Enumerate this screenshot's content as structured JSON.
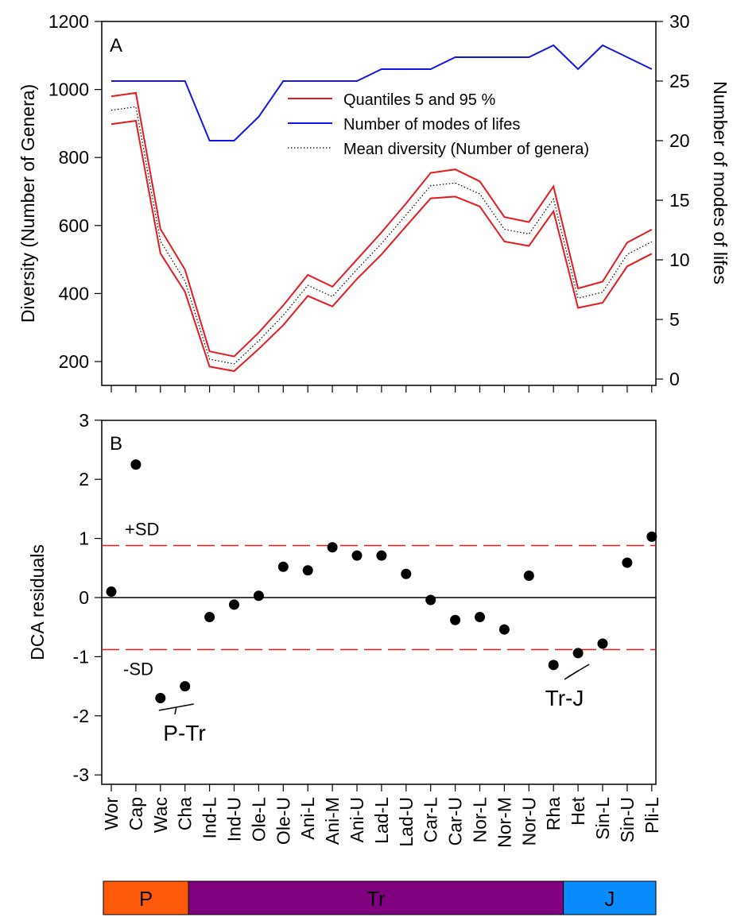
{
  "chart_data": [
    {
      "panel": "A",
      "type": "line",
      "x": [
        "Wor",
        "Cap",
        "Wac",
        "Cha",
        "Ind-L",
        "Ind-U",
        "Ole-L",
        "Ole-U",
        "Ani-L",
        "Ani-M",
        "Ani-U",
        "Lad-L",
        "Lad-U",
        "Car-L",
        "Car-U",
        "Nor-L",
        "Nor-M",
        "Nor-U",
        "Rha",
        "Het",
        "Sin-L",
        "Sin-U",
        "Pli-L"
      ],
      "ylabel": "Diversity (Number of Genera)",
      "y2label": "Number of modes of lifes",
      "ylim": [
        150,
        1200
      ],
      "y2lim": [
        0,
        30
      ],
      "yticks": [
        200,
        400,
        600,
        800,
        1000,
        1200
      ],
      "y2ticks": [
        0,
        5,
        10,
        15,
        20,
        25,
        30
      ],
      "legend_position": "upper-right",
      "series": [
        {
          "name": "Quantiles 5 and 95 %",
          "axis": "left",
          "color": "#e8191e",
          "style": "solid",
          "values": [
            980,
            990,
            590,
            470,
            230,
            215,
            285,
            365,
            455,
            420,
            500,
            580,
            665,
            755,
            765,
            730,
            625,
            610,
            715,
            415,
            435,
            550,
            588
          ]
        },
        {
          "name": "",
          "axis": "left",
          "color": "#e8191e",
          "style": "solid",
          "values": [
            898,
            908,
            518,
            405,
            185,
            172,
            237,
            307,
            393,
            362,
            443,
            515,
            598,
            680,
            685,
            656,
            553,
            540,
            642,
            358,
            373,
            480,
            517
          ]
        },
        {
          "name": "Mean diversity (Number of genera)",
          "axis": "left",
          "color": "#000000",
          "style": "dotted",
          "values": [
            939,
            949,
            554,
            437,
            207,
            193,
            261,
            336,
            424,
            391,
            471,
            547,
            631,
            717,
            725,
            693,
            589,
            575,
            678,
            386,
            404,
            515,
            552
          ]
        },
        {
          "name": "Number of modes of lifes",
          "axis": "right",
          "color": "#1414e6",
          "style": "solid",
          "values": [
            25,
            25,
            25,
            25,
            20,
            20,
            22,
            25,
            25,
            25,
            25,
            26,
            26,
            26,
            27,
            27,
            27,
            27,
            28,
            26,
            28,
            27,
            26
          ]
        }
      ]
    },
    {
      "panel": "B",
      "type": "scatter",
      "x": [
        "Wor",
        "Cap",
        "Wac",
        "Cha",
        "Ind-L",
        "Ind-U",
        "Ole-L",
        "Ole-U",
        "Ani-L",
        "Ani-M",
        "Ani-U",
        "Lad-L",
        "Lad-U",
        "Car-L",
        "Car-U",
        "Nor-L",
        "Nor-M",
        "Nor-U",
        "Rha",
        "Het",
        "Sin-L",
        "Sin-U",
        "Pli-L"
      ],
      "ylabel": "DCA residuals",
      "ylim": [
        -3,
        3
      ],
      "yticks": [
        -3,
        -2,
        -1,
        0,
        1,
        2,
        3
      ],
      "values": [
        0.1,
        2.25,
        -1.7,
        -1.5,
        -0.33,
        -0.12,
        0.03,
        0.52,
        0.46,
        0.85,
        0.71,
        0.71,
        0.4,
        -0.04,
        -0.38,
        -0.33,
        -0.54,
        0.37,
        -1.14,
        -0.94,
        -0.78,
        0.59,
        1.03
      ],
      "sd": 0.88,
      "sd_labels": {
        "plus": "+SD",
        "minus": "-SD"
      },
      "reference_line": 0,
      "annotations": [
        {
          "text": "P-Tr",
          "between": [
            "Wac",
            "Cha"
          ]
        },
        {
          "text": "Tr-J",
          "between": [
            "Rha",
            "Het"
          ]
        }
      ]
    }
  ],
  "panels": {
    "a": "A",
    "b": "B"
  },
  "legend": [
    {
      "label": "Quantiles 5 and 95 %",
      "color": "#e8191e",
      "style": "solid"
    },
    {
      "label": "Number of modes of lifes",
      "color": "#1414e6",
      "style": "solid"
    },
    {
      "label": "Mean diversity (Number of genera)",
      "color": "#000000",
      "style": "dotted"
    }
  ],
  "periods": [
    {
      "label": "P",
      "color": "#ff5a0a",
      "from": 0,
      "to": 3
    },
    {
      "label": "Tr",
      "color": "#800080",
      "from": 4,
      "to": 18
    },
    {
      "label": "J",
      "color": "#0a8cff",
      "from": 19,
      "to": 22
    }
  ]
}
